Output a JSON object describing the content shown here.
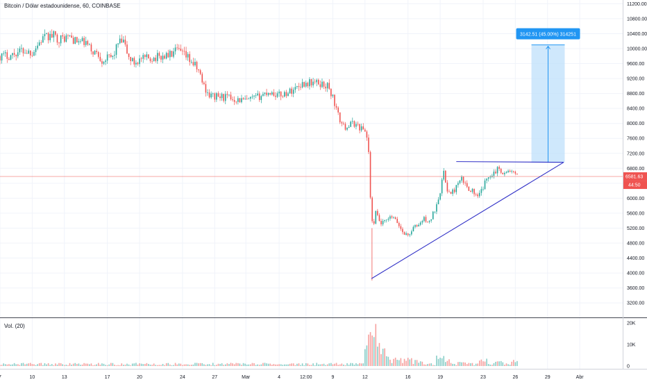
{
  "header": {
    "symbol_title": "Bitcoin / Dólar estadounidense, 60, COINBASE"
  },
  "volume_legend": "Vol. (20)",
  "price_badge": {
    "price": "6581.63",
    "countdown": "44:50"
  },
  "measure_label": "3142.51 (45.00%) 314251",
  "colors": {
    "up": "#26a69a",
    "down": "#ef5350",
    "trendline": "#3131c7",
    "price_line": "#ef5350",
    "measure_fill": "#bbdefb",
    "measure_border": "#2196f3",
    "label_bg": "#2196f3"
  },
  "chart_data": [
    {
      "type": "candlestick",
      "title": "Bitcoin / Dólar estadounidense, 60, COINBASE",
      "y_axis_ticks": [
        3200,
        3600,
        4000,
        4400,
        4800,
        5200,
        5600,
        6000,
        6400,
        6800,
        7200,
        7600,
        8000,
        8400,
        8800,
        9200,
        9600,
        10000,
        10400,
        10800,
        11200
      ],
      "y_axis_tick_labels": [
        "3200.00",
        "3600.00",
        "4000.00",
        "4400.00",
        "4800.00",
        "5200.00",
        "5600.00",
        "6000.00",
        "6400.00",
        "6800.00",
        "7200.00",
        "7600.00",
        "8000.00",
        "8400.00",
        "8800.00",
        "9200.00",
        "9600.00",
        "10000.00",
        "10400.00",
        "10800.00",
        "11200.00"
      ],
      "ylim": [
        2850,
        11300
      ],
      "x_axis_ticks": [
        {
          "label": "7",
          "day": 7
        },
        {
          "label": "10",
          "day": 10
        },
        {
          "label": "13",
          "day": 13
        },
        {
          "label": "17",
          "day": 17
        },
        {
          "label": "20",
          "day": 20
        },
        {
          "label": "24",
          "day": 24
        },
        {
          "label": "27",
          "day": 27
        },
        {
          "label": "Mar",
          "day": 29.9
        },
        {
          "label": "4",
          "day": 33
        },
        {
          "label": "12:00",
          "day": 35.5
        },
        {
          "label": "9",
          "day": 38
        },
        {
          "label": "12",
          "day": 41
        },
        {
          "label": "16",
          "day": 45
        },
        {
          "label": "19",
          "day": 48
        },
        {
          "label": "23",
          "day": 52
        },
        {
          "label": "26",
          "day": 55
        },
        {
          "label": "29",
          "day": 58
        },
        {
          "label": "Abr",
          "day": 61
        }
      ],
      "x_axis_note": "day = day number counted from 1 February 2020; Mar = 1 March",
      "xlim": [
        7,
        65
      ],
      "price_path": [
        [
          7,
          9800
        ],
        [
          8,
          9820
        ],
        [
          9,
          9950
        ],
        [
          10,
          9900
        ],
        [
          10.5,
          10100
        ],
        [
          11,
          10280
        ],
        [
          12,
          10350
        ],
        [
          12.5,
          10250
        ],
        [
          13.5,
          10320
        ],
        [
          14,
          10200
        ],
        [
          15,
          10150
        ],
        [
          15.5,
          9950
        ],
        [
          16,
          9880
        ],
        [
          16.5,
          9700
        ],
        [
          17.5,
          9780
        ],
        [
          18,
          10150
        ],
        [
          18.5,
          10180
        ],
        [
          19,
          9750
        ],
        [
          19.5,
          9620
        ],
        [
          20,
          9700
        ],
        [
          21,
          9750
        ],
        [
          22,
          9780
        ],
        [
          23,
          9850
        ],
        [
          23.5,
          9950
        ],
        [
          24.5,
          9750
        ],
        [
          25,
          9600
        ],
        [
          25.5,
          9400
        ],
        [
          26,
          9000
        ],
        [
          26.5,
          8750
        ],
        [
          27,
          8720
        ],
        [
          28,
          8700
        ],
        [
          29,
          8650
        ],
        [
          29.5,
          8620
        ],
        [
          30,
          8600
        ],
        [
          31,
          8700
        ],
        [
          32,
          8850
        ],
        [
          32.5,
          8800
        ],
        [
          33,
          8750
        ],
        [
          34,
          8850
        ],
        [
          34.5,
          8950
        ],
        [
          35,
          9050
        ],
        [
          36,
          9100
        ],
        [
          37,
          9050
        ],
        [
          37.5,
          9000
        ],
        [
          38,
          8700
        ],
        [
          38.5,
          8200
        ],
        [
          39,
          7900
        ],
        [
          39.5,
          7950
        ],
        [
          40,
          8000
        ],
        [
          40.5,
          7900
        ],
        [
          41,
          7800
        ],
        [
          41.3,
          7500
        ],
        [
          41.5,
          6000
        ],
        [
          41.7,
          5200
        ],
        [
          42,
          5600
        ],
        [
          42.5,
          5300
        ],
        [
          43,
          5400
        ],
        [
          43.5,
          5500
        ],
        [
          44,
          5350
        ],
        [
          44.5,
          5100
        ],
        [
          45,
          5000
        ],
        [
          45.5,
          5200
        ],
        [
          46,
          5300
        ],
        [
          46.5,
          5450
        ],
        [
          47,
          5350
        ],
        [
          47.5,
          5700
        ],
        [
          48,
          6200
        ],
        [
          48.3,
          6700
        ],
        [
          48.7,
          6200
        ],
        [
          49,
          6100
        ],
        [
          49.5,
          6300
        ],
        [
          50,
          6500
        ],
        [
          50.5,
          6300
        ],
        [
          51,
          6200
        ],
        [
          51.5,
          6000
        ],
        [
          52,
          6300
        ],
        [
          52.5,
          6600
        ],
        [
          53,
          6700
        ],
        [
          53.5,
          6800
        ],
        [
          54,
          6650
        ],
        [
          54.5,
          6750
        ],
        [
          55,
          6600
        ],
        [
          55.2,
          6580
        ]
      ],
      "price_extremes": {
        "high": 10500,
        "low": 3800
      },
      "last_price": 6581.63,
      "trendlines": [
        {
          "name": "ascending-support",
          "points": [
            [
              41.6,
              3850
            ],
            [
              59.5,
              6960
            ]
          ]
        },
        {
          "name": "horizontal-resistance",
          "points": [
            [
              49.5,
              6980
            ],
            [
              59.5,
              6960
            ]
          ]
        }
      ],
      "measure": {
        "from_price": 6950,
        "to_price": 10100,
        "from_day": 56.5,
        "to_day": 59.6,
        "change": 3142.51,
        "percent": 45.0
      }
    },
    {
      "type": "bar",
      "title": "Vol. (20)",
      "y_axis_tick_labels": [
        "0",
        "10K",
        "20K"
      ],
      "y_axis_ticks": [
        0,
        10000,
        20000
      ],
      "ylim": [
        0,
        20000
      ],
      "spikes": [
        [
          41.3,
          8000
        ],
        [
          41.5,
          15000
        ],
        [
          41.7,
          20000
        ],
        [
          42,
          11000
        ],
        [
          42.5,
          9000
        ],
        [
          43,
          5000
        ],
        [
          44,
          4000
        ],
        [
          45,
          4000
        ],
        [
          46,
          3000
        ],
        [
          48,
          5000
        ],
        [
          48.5,
          3500
        ],
        [
          50,
          3000
        ],
        [
          52,
          3500
        ],
        [
          53.5,
          2500
        ],
        [
          55,
          3000
        ]
      ]
    }
  ]
}
